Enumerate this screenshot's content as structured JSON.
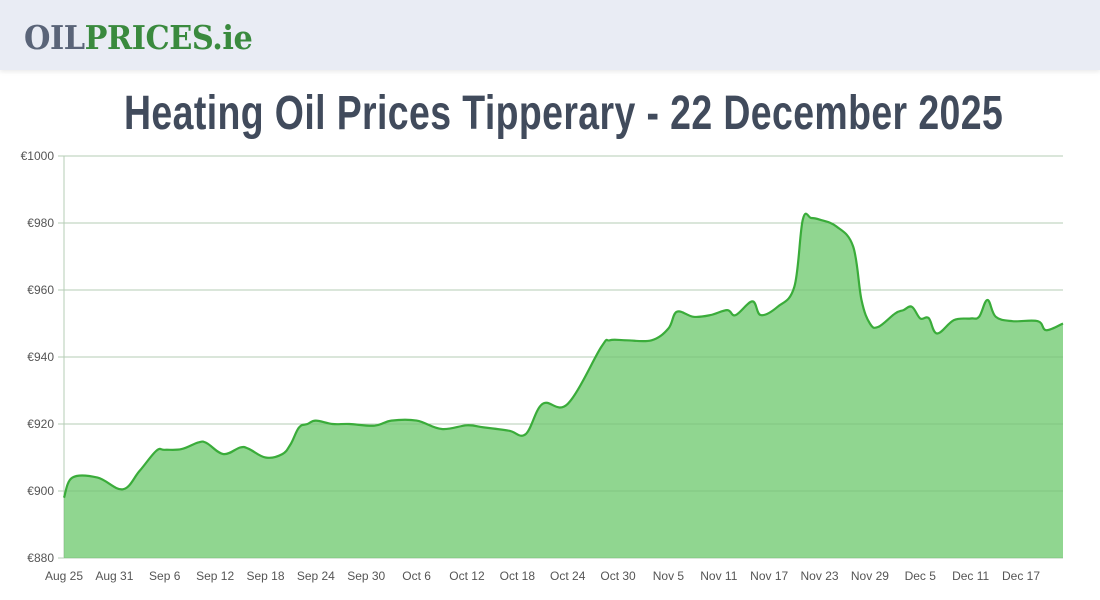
{
  "header": {
    "logo_part1": "OIL",
    "logo_part2": "PRICES.ie"
  },
  "page_title": "Heating Oil Prices Tipperary - 22 December 2025",
  "colors": {
    "line": "#3aac3a",
    "fill": "#90d690",
    "grid": "#e0e0e0",
    "title": "#414b5c",
    "logo_gray": "#5a6478",
    "logo_green": "#3a8a3e",
    "header_bg": "#e9ecf4"
  },
  "chart_data": {
    "type": "area",
    "title": "Heating Oil Prices Tipperary - 22 December 2025",
    "xlabel": "",
    "ylabel": "",
    "ylim": [
      880,
      1000
    ],
    "yticks": [
      "€880",
      "€900",
      "€920",
      "€940",
      "€960",
      "€980",
      "€1000"
    ],
    "ytick_values": [
      880,
      900,
      920,
      940,
      960,
      980,
      1000
    ],
    "xticks": [
      "Aug 25",
      "Aug 31",
      "Sep 6",
      "Sep 12",
      "Sep 18",
      "Sep 24",
      "Sep 30",
      "Oct 6",
      "Oct 12",
      "Oct 18",
      "Oct 24",
      "Oct 30",
      "Nov 5",
      "Nov 11",
      "Nov 17",
      "Nov 23",
      "Nov 29",
      "Dec 5",
      "Dec 11",
      "Dec 17"
    ],
    "grid": true,
    "legend": false,
    "x_start": "Aug 25",
    "x_end": "Dec 22",
    "series": [
      {
        "name": "Heating oil price (€)",
        "day_offsets": [
          0,
          1,
          4,
          7,
          9,
          11,
          12,
          14,
          16,
          17,
          19,
          21,
          22,
          24,
          26,
          27,
          28,
          29,
          30,
          32,
          34,
          37,
          39,
          42,
          45,
          48,
          50,
          53,
          55,
          57,
          60,
          64,
          65,
          67,
          70,
          72,
          73,
          75,
          77,
          79,
          80,
          82,
          83,
          85,
          87,
          88,
          89,
          90,
          92,
          94,
          95,
          96,
          97,
          99,
          100,
          101,
          102,
          103,
          104,
          106,
          108,
          109,
          110,
          111,
          113,
          116,
          117,
          119
        ],
        "values": [
          898,
          904,
          904,
          900.5,
          906,
          912,
          912.3,
          912.5,
          914.5,
          914.3,
          911,
          913,
          912.6,
          910,
          911,
          914,
          919,
          920,
          921,
          920,
          920,
          919.5,
          921,
          921,
          918.5,
          919.6,
          919,
          918,
          917,
          926,
          926,
          943,
          945,
          945,
          945,
          948.5,
          953.5,
          952,
          952.5,
          954,
          952.5,
          956.6,
          952.5,
          955,
          961,
          981,
          981.5,
          981,
          979,
          973,
          957,
          950,
          949,
          953,
          954,
          955,
          951.5,
          951.6,
          947,
          951,
          951.5,
          952,
          957,
          952,
          950.7,
          950.7,
          948,
          950
        ]
      }
    ]
  }
}
